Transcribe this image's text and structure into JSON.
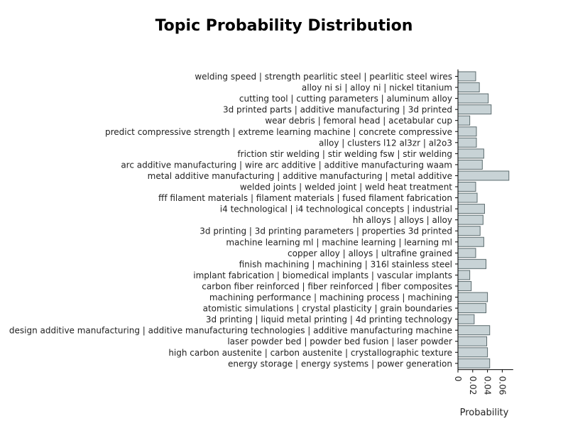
{
  "chart_data": {
    "type": "bar",
    "orientation": "horizontal",
    "title": "Topic Probability Distribution",
    "xlabel": "Probability",
    "ylabel": "",
    "xlim": [
      0,
      0.07
    ],
    "x_ticks": [
      0,
      0.02,
      0.04,
      0.06
    ],
    "x_tick_labels": [
      "0",
      "0.02",
      "0.04",
      "0.06"
    ],
    "bar_color": "#c8d3d6",
    "bar_edge_color": "#5b6b6e",
    "grid": false,
    "categories": [
      "welding speed | strength pearlitic steel | pearlitic steel wires",
      "alloy ni si | alloy ni | nickel titanium",
      "cutting tool | cutting parameters | aluminum alloy",
      "3d printed parts | additive manufacturing | 3d printed",
      "wear debris | femoral head | acetabular cup",
      "predict compressive strength | extreme learning machine | concrete compressive",
      "alloy | clusters l12 al3zr | al2o3",
      "friction stir welding | stir welding fsw | stir welding",
      "arc additive manufacturing | wire arc additive | additive manufacturing waam",
      "metal additive manufacturing | additive manufacturing | metal additive",
      "welded joints | welded joint | weld heat treatment",
      "fff filament materials | filament materials | fused filament fabrication",
      "i4 technological | i4 technological concepts | industrial",
      "hh alloys | alloys | alloy",
      "3d printing | 3d printing parameters | properties 3d printed",
      "machine learning ml | machine learning | learning ml",
      "copper alloy | alloys | ultrafine grained",
      "finish machining | machining | 316l stainless steel",
      "implant fabrication | biomedical implants | vascular implants",
      "carbon fiber reinforced | fiber reinforced | fiber composites",
      "machining performance | machining process | machining",
      "atomistic simulations | crystal plasticity | grain boundaries",
      "3d printing | liquid metal printing | 4d printing technology",
      "design additive manufacturing | additive manufacturing technologies | additive manufacturing machine",
      "laser powder bed | powder bed fusion | laser powder",
      "high carbon austenite | carbon austenite | crystallographic texture",
      "energy storage | energy systems | power generation"
    ],
    "values": [
      0.024,
      0.029,
      0.041,
      0.045,
      0.016,
      0.025,
      0.025,
      0.035,
      0.033,
      0.069,
      0.024,
      0.026,
      0.036,
      0.034,
      0.03,
      0.035,
      0.024,
      0.038,
      0.016,
      0.018,
      0.04,
      0.038,
      0.022,
      0.043,
      0.039,
      0.04,
      0.043
    ]
  }
}
